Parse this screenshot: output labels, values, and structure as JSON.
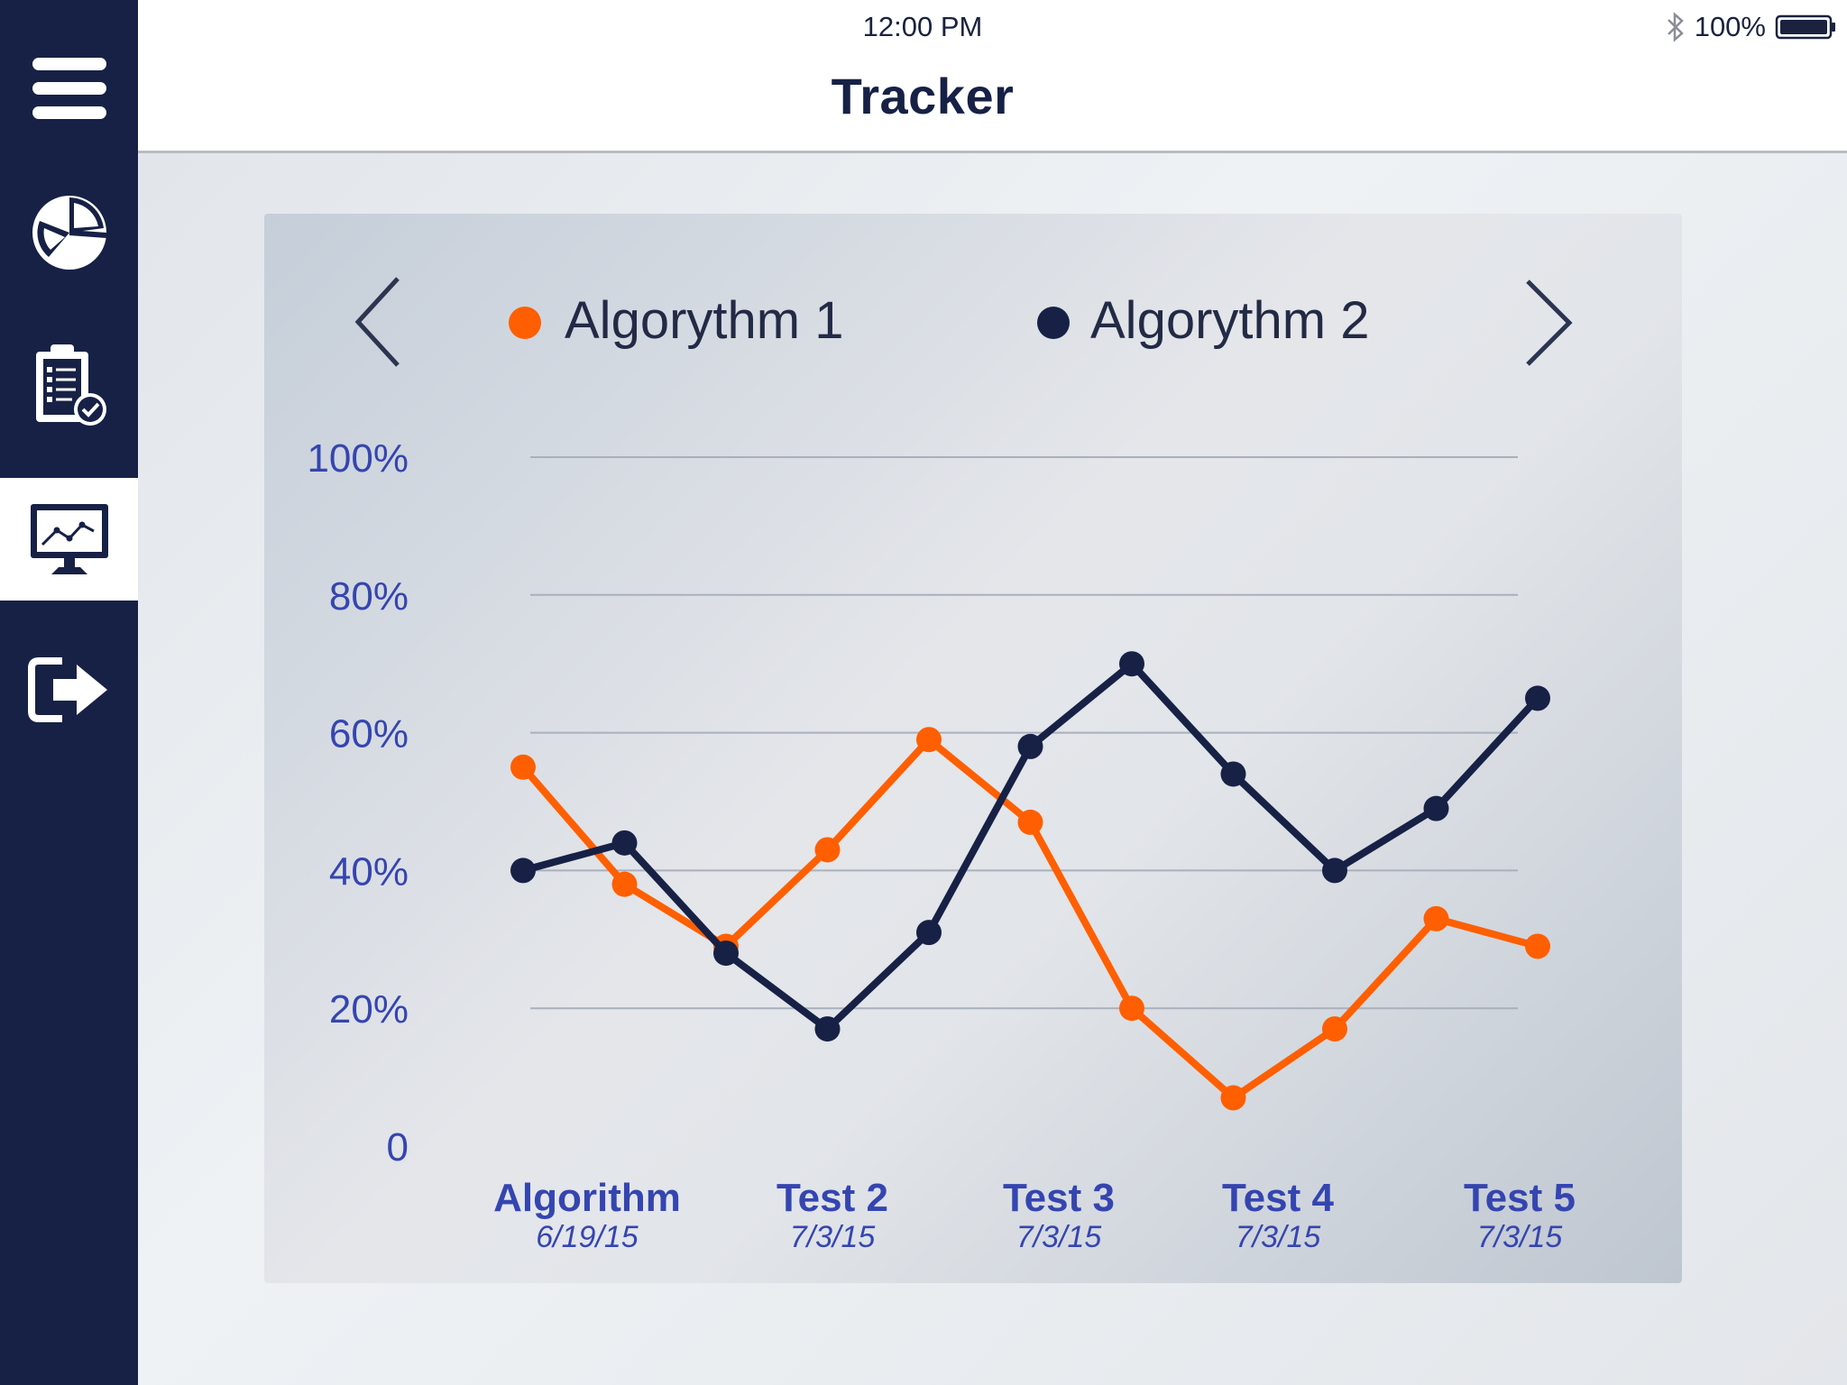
{
  "status_bar": {
    "time": "12:00 PM",
    "battery": "100%"
  },
  "header": {
    "title": "Tracker"
  },
  "sidebar": {
    "items": [
      {
        "icon": "menu-icon"
      },
      {
        "icon": "pie-chart-icon"
      },
      {
        "icon": "clipboard-check-icon"
      },
      {
        "icon": "monitor-chart-icon",
        "active": true
      },
      {
        "icon": "logout-icon"
      }
    ]
  },
  "colors": {
    "navy": "#172146",
    "orange": "#ff5f00",
    "axis_text": "#3545b0"
  },
  "chart_data": {
    "type": "line",
    "y_ticks": [
      "0",
      "20%",
      "40%",
      "60%",
      "80%",
      "100%"
    ],
    "ylim": [
      0,
      100
    ],
    "grid": true,
    "legend_position": "top",
    "x_labels": [
      {
        "name": "Algorithm",
        "date": "6/19/15"
      },
      {
        "name": "Test 2",
        "date": "7/3/15"
      },
      {
        "name": "Test 3",
        "date": "7/3/15"
      },
      {
        "name": "Test 4",
        "date": "7/3/15"
      },
      {
        "name": "Test 5",
        "date": "7/3/15"
      }
    ],
    "series": [
      {
        "name": "Algorythm 1",
        "color": "#ff5f00",
        "values": [
          55,
          38,
          29,
          43,
          59,
          47,
          20,
          7,
          17,
          33,
          29
        ]
      },
      {
        "name": "Algorythm 2",
        "color": "#172146",
        "values": [
          40,
          44,
          28,
          17,
          31,
          58,
          70,
          54,
          40,
          49,
          65
        ]
      }
    ]
  }
}
